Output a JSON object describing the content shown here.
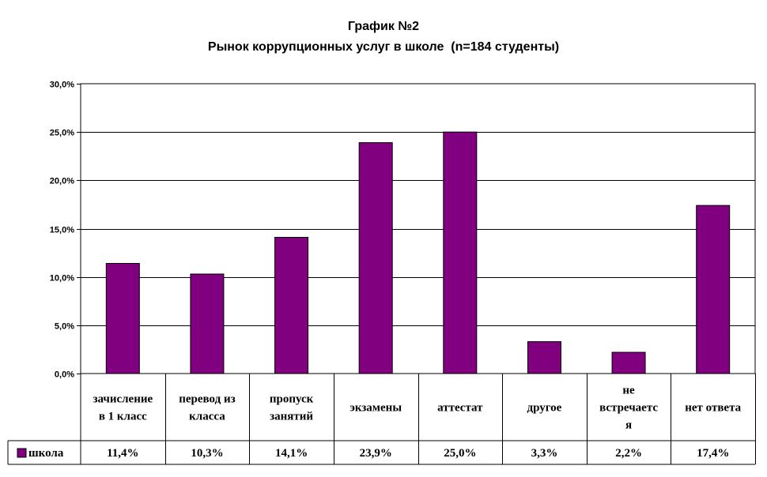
{
  "chart_data": {
    "type": "bar",
    "title": "График №2",
    "subtitle": "Рынок коррупционных услуг в школе  (n=184 студенты)",
    "categories": [
      [
        "зачисление",
        "в 1 класс"
      ],
      [
        "перевод из",
        "класса"
      ],
      [
        "пропуск",
        "занятий"
      ],
      [
        "экзамены"
      ],
      [
        "аттестат"
      ],
      [
        "другое"
      ],
      [
        "не",
        "встречаетс",
        "я"
      ],
      [
        "нет ответа"
      ]
    ],
    "series": [
      {
        "name": "школа",
        "color": "#800080",
        "values": [
          11.4,
          10.3,
          14.1,
          23.9,
          25.0,
          3.3,
          2.2,
          17.4
        ],
        "labels": [
          "11,4%",
          "10,3%",
          "14,1%",
          "23,9%",
          "25,0%",
          "3,3%",
          "2,2%",
          "17,4%"
        ]
      }
    ],
    "yticks": [
      "0,0%",
      "5,0%",
      "10,0%",
      "15,0%",
      "20,0%",
      "25,0%",
      "30,0%"
    ],
    "ylim": [
      0,
      30
    ],
    "grid": true,
    "legend": "data-table-left"
  }
}
